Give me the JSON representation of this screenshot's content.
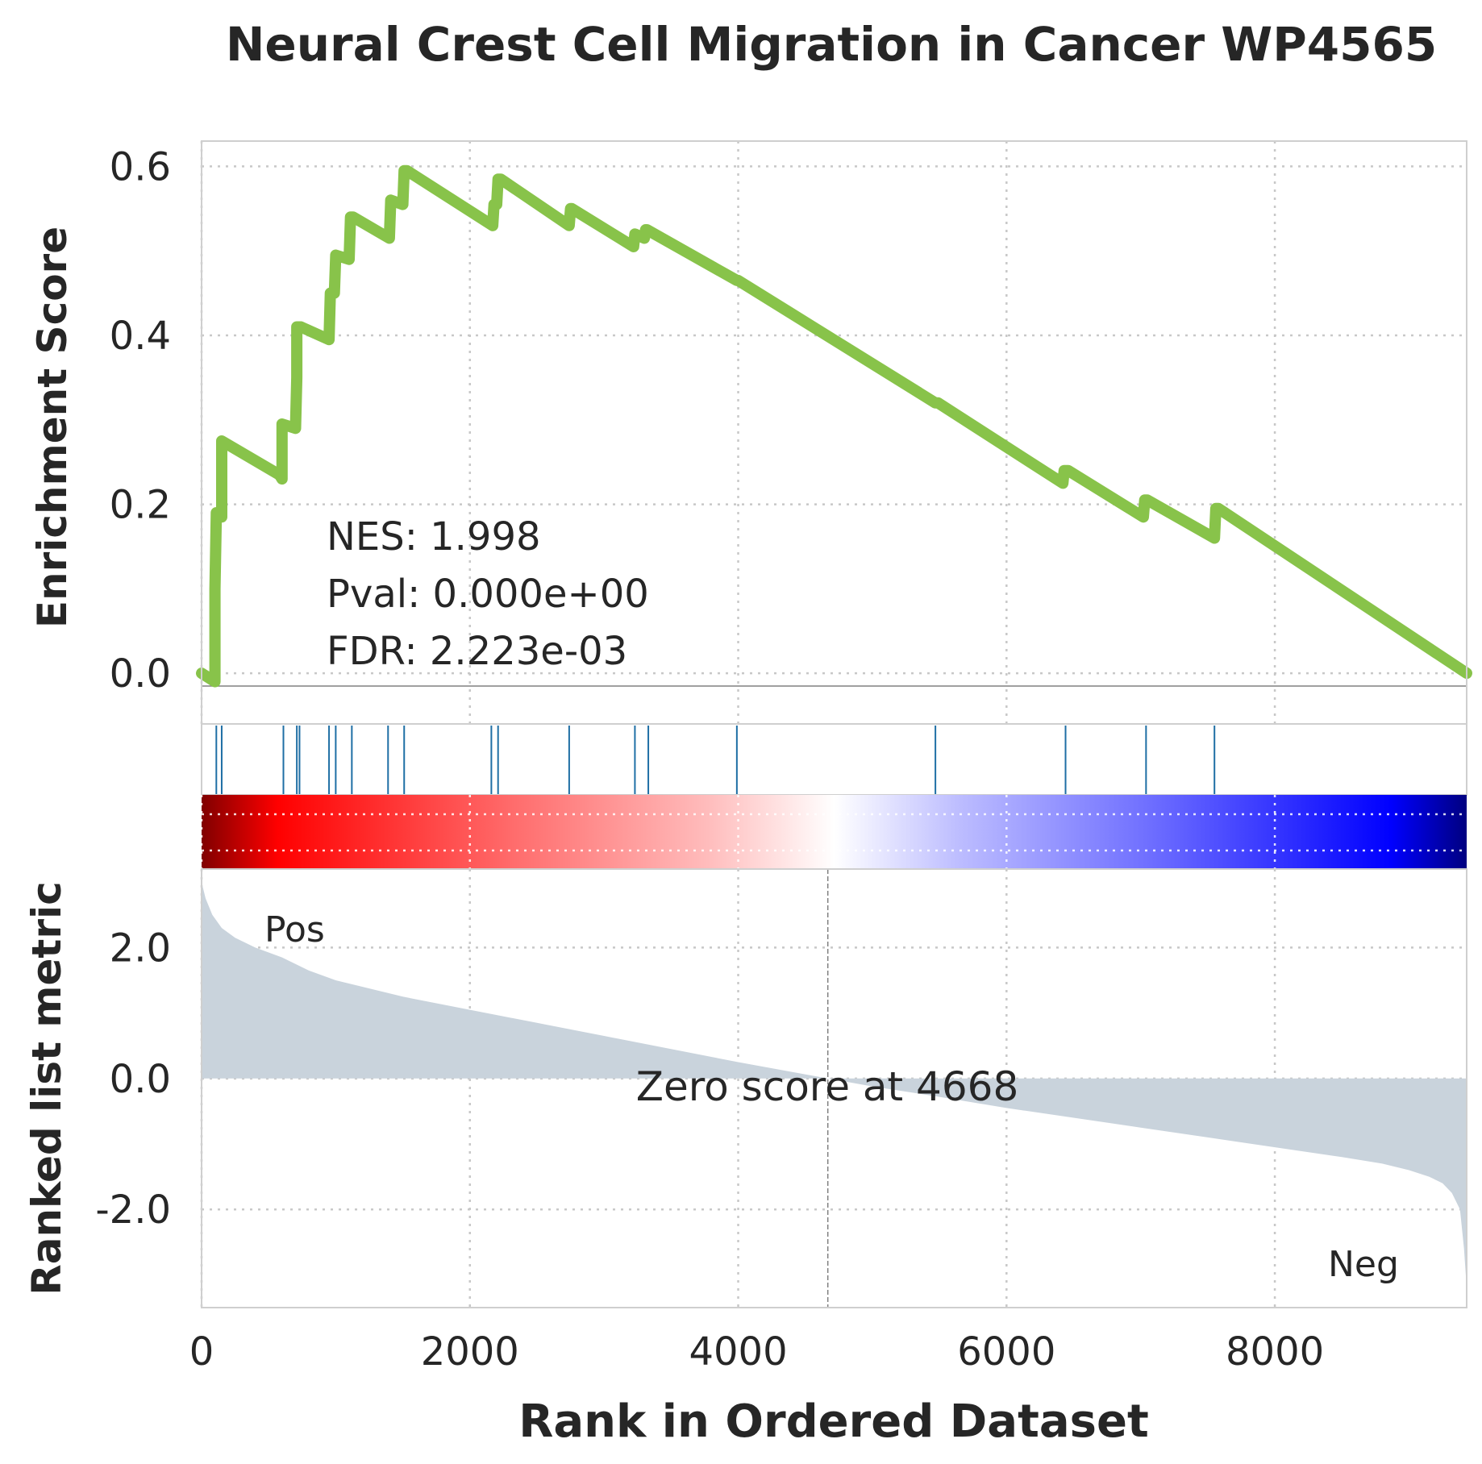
{
  "title": "Neural Crest Cell Migration in Cancer WP4565",
  "stats": {
    "nes": "NES: 1.998",
    "pval": "Pval: 0.000e+00",
    "fdr": "FDR: 2.223e-03"
  },
  "labels": {
    "pos": "Pos",
    "neg": "Neg",
    "zero_score": "Zero score at 4668"
  },
  "colors": {
    "es_line": "#88c34a",
    "hits": "#1f6fa5",
    "metric_fill": "#c9d3dc",
    "pos_text": "#ff0000",
    "neg_text": "#0000ff",
    "grid": "#c8c8c8",
    "frame": "#cfcfcf"
  },
  "chart_data": [
    {
      "type": "line",
      "panel": "enrichment",
      "ylabel": "Enrichment Score",
      "xlim": [
        0,
        9430
      ],
      "ylim": [
        -0.06,
        0.63
      ],
      "yticks": [
        0.0,
        0.2,
        0.4,
        0.6
      ],
      "ytick_labels": [
        "0.0",
        "0.2",
        "0.4",
        "0.6"
      ],
      "grid": true,
      "x": [
        0,
        50,
        100,
        100,
        110,
        120,
        150,
        150,
        580,
        600,
        600,
        700,
        710,
        710,
        720,
        730,
        740,
        950,
        960,
        990,
        1000,
        1000,
        1100,
        1110,
        1130,
        1400,
        1410,
        1500,
        1510,
        1520,
        1530,
        2170,
        2180,
        2200,
        2210,
        2220,
        2230,
        2740,
        2750,
        2760,
        3220,
        3230,
        3300,
        3310,
        3320,
        3990,
        4000,
        5470,
        5490,
        6420,
        6430,
        6450,
        6460,
        7020,
        7030,
        7040,
        7050,
        7550,
        7560,
        7570,
        7580,
        9430
      ],
      "y": [
        0.0,
        -0.005,
        -0.01,
        0.1,
        0.19,
        0.19,
        0.185,
        0.275,
        0.235,
        0.23,
        0.295,
        0.29,
        0.35,
        0.41,
        0.41,
        0.41,
        0.41,
        0.395,
        0.45,
        0.45,
        0.495,
        0.495,
        0.49,
        0.54,
        0.54,
        0.515,
        0.56,
        0.555,
        0.595,
        0.595,
        0.595,
        0.53,
        0.555,
        0.555,
        0.585,
        0.585,
        0.585,
        0.53,
        0.55,
        0.55,
        0.505,
        0.52,
        0.515,
        0.525,
        0.525,
        0.465,
        0.465,
        0.32,
        0.32,
        0.225,
        0.24,
        0.24,
        0.24,
        0.185,
        0.205,
        0.205,
        0.205,
        0.16,
        0.195,
        0.195,
        0.195,
        0.0
      ]
    },
    {
      "type": "scatter",
      "panel": "hits",
      "xlim": [
        0,
        9430
      ],
      "x": [
        110,
        150,
        610,
        710,
        730,
        950,
        1000,
        1120,
        1390,
        1510,
        2160,
        2210,
        2740,
        3230,
        3330,
        3990,
        5470,
        6440,
        7040,
        7550
      ]
    },
    {
      "type": "heatmap",
      "panel": "colorbar",
      "colormap": "seismic_r",
      "xlim": [
        0,
        9430
      ]
    },
    {
      "type": "area",
      "panel": "ranked_metric",
      "ylabel": "Ranked list metric",
      "xlabel": "Rank in Ordered Dataset",
      "xlim": [
        0,
        9430
      ],
      "ylim": [
        -3.5,
        3.2
      ],
      "xticks": [
        0,
        2000,
        4000,
        6000,
        8000
      ],
      "xtick_labels": [
        "0",
        "2000",
        "4000",
        "6000",
        "8000"
      ],
      "yticks": [
        2.0,
        0.0,
        -2.0
      ],
      "ytick_labels": [
        "2.0",
        "0.0",
        "-2.0"
      ],
      "zero_cross": 4668,
      "grid": true,
      "x": [
        0,
        30,
        80,
        150,
        250,
        400,
        600,
        800,
        1000,
        1500,
        2000,
        2500,
        3000,
        3500,
        4000,
        4668,
        5000,
        5500,
        6000,
        6500,
        7000,
        7500,
        8000,
        8500,
        8800,
        9000,
        9150,
        9250,
        9320,
        9380,
        9410,
        9430
      ],
      "y": [
        3.0,
        2.75,
        2.5,
        2.3,
        2.15,
        2.0,
        1.85,
        1.65,
        1.5,
        1.25,
        1.05,
        0.85,
        0.65,
        0.45,
        0.25,
        0.0,
        -0.12,
        -0.28,
        -0.45,
        -0.6,
        -0.75,
        -0.9,
        -1.05,
        -1.2,
        -1.3,
        -1.4,
        -1.5,
        -1.6,
        -1.75,
        -2.0,
        -2.6,
        -3.2
      ]
    }
  ]
}
